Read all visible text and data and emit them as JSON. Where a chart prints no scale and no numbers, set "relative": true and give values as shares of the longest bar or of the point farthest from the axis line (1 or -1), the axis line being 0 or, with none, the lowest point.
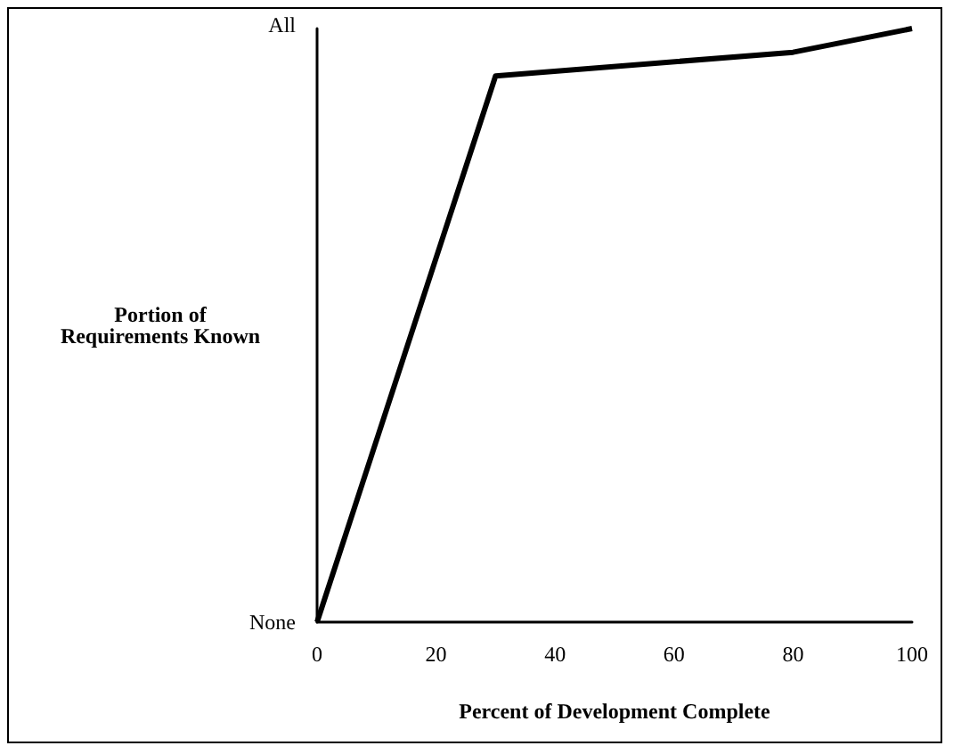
{
  "chart_data": {
    "type": "line",
    "xlabel": "Percent of Development Complete",
    "ylabel": "Portion of\nRequirements Known",
    "annotations": [
      "None",
      "All"
    ],
    "x": [
      0,
      30,
      80,
      100
    ],
    "series": [
      {
        "color": "#000000",
        "values": [
          0,
          0.92,
          0.96,
          1
        ]
      }
    ],
    "relative": true,
    "xlim": [
      0,
      100
    ],
    "xticks": [
      0,
      20,
      40,
      60,
      80,
      100
    ],
    "grid": false,
    "marker": "none",
    "line_style": "solid"
  }
}
